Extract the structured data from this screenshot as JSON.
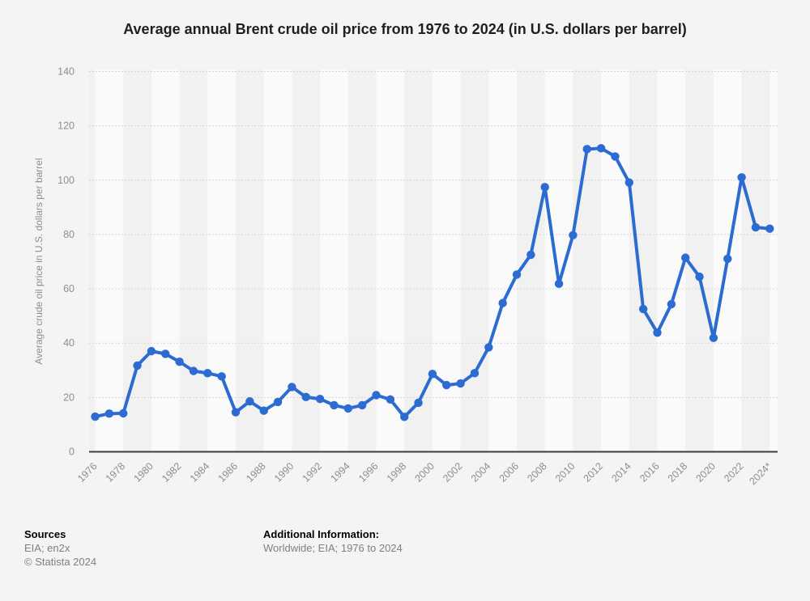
{
  "title": "Average annual Brent crude oil price from 1976 to 2024 (in U.S. dollars per barrel)",
  "chart_data": {
    "type": "line",
    "title": "Average annual Brent crude oil price from 1976 to 2024 (in U.S. dollars per barrel)",
    "ylabel": "Average crude oil price in U.S. dollars per barrel",
    "xlabel": "",
    "ylim": [
      0,
      140
    ],
    "yticks": [
      0,
      20,
      40,
      60,
      80,
      100,
      120,
      140
    ],
    "grid": "dotted-horizontal",
    "legend": "none",
    "marker": "circle",
    "x": [
      1976,
      1977,
      1978,
      1979,
      1980,
      1981,
      1982,
      1983,
      1984,
      1985,
      1986,
      1987,
      1988,
      1989,
      1990,
      1991,
      1992,
      1993,
      1994,
      1995,
      1996,
      1997,
      1998,
      1999,
      2000,
      2001,
      2002,
      2003,
      2004,
      2005,
      2006,
      2007,
      2008,
      2009,
      2010,
      2011,
      2012,
      2013,
      2014,
      2015,
      2016,
      2017,
      2018,
      2019,
      2020,
      2021,
      2022,
      2023,
      2024
    ],
    "xtick_labels": [
      "1976",
      "1978",
      "1980",
      "1982",
      "1984",
      "1986",
      "1988",
      "1990",
      "1992",
      "1994",
      "1996",
      "1998",
      "2000",
      "2002",
      "2004",
      "2006",
      "2008",
      "2010",
      "2012",
      "2014",
      "2016",
      "2018",
      "2020",
      "2022",
      "2024*"
    ],
    "series": [
      {
        "name": "Brent crude oil price (U.S. dollars per barrel)",
        "values": [
          12.8,
          13.9,
          14.0,
          31.6,
          36.9,
          35.9,
          33.0,
          29.6,
          28.8,
          27.6,
          14.4,
          18.4,
          15.0,
          18.2,
          23.7,
          20.0,
          19.3,
          17.0,
          15.8,
          17.0,
          20.7,
          19.1,
          12.7,
          17.9,
          28.5,
          24.4,
          25.0,
          28.8,
          38.3,
          54.6,
          65.1,
          72.4,
          97.3,
          61.7,
          79.6,
          111.3,
          111.6,
          108.6,
          99.0,
          52.4,
          43.7,
          54.2,
          71.3,
          64.3,
          41.8,
          70.9,
          100.9,
          82.5,
          82.0
        ]
      }
    ]
  },
  "footer": {
    "sources_heading": "Sources",
    "sources_line1": "EIA; en2x",
    "sources_line2": "© Statista 2024",
    "additional_heading": "Additional Information:",
    "additional_line1": "Worldwide; EIA; 1976 to 2024"
  },
  "colors": {
    "line": "#2c6bd2",
    "background": "#f4f4f4",
    "band_light": "#fafafa",
    "band_dark": "#f1f1f1",
    "gridline": "#c9c9c9",
    "axis": "#3d3d3d",
    "muted_text": "#8e8e8e"
  }
}
